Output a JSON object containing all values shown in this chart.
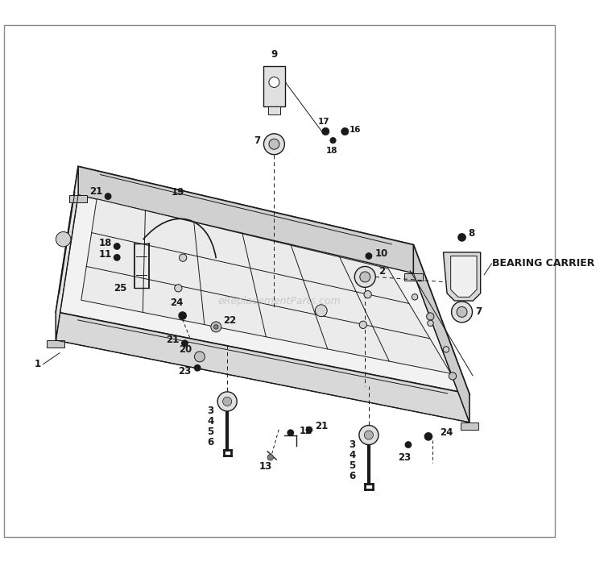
{
  "bg": "#ffffff",
  "lc": "#1a1a1a",
  "wm_color": "#bbbbbb",
  "wm_text": "eReplacementParts.com",
  "bearing_text": "BEARING CARRIER",
  "font_sz": 8.5,
  "font_sz_sm": 7.5,
  "wm_font_sz": 9,
  "bc_font_sz": 9
}
